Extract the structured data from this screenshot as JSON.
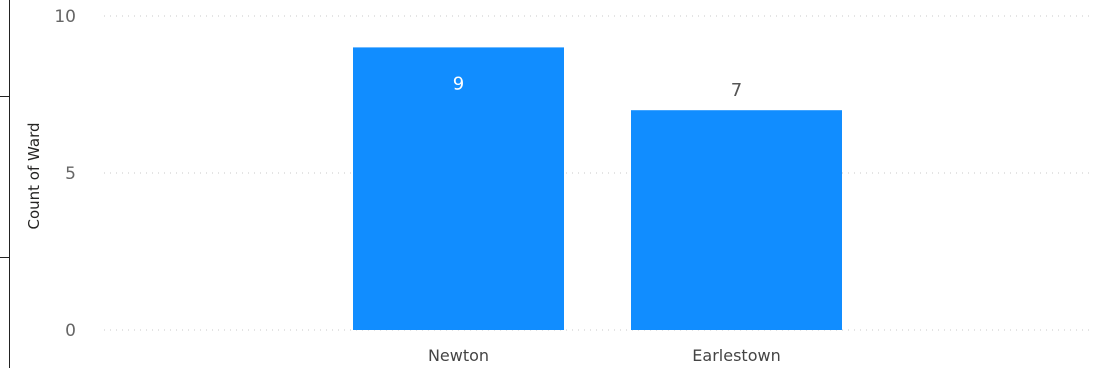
{
  "chart_data": {
    "type": "bar",
    "categories": [
      "Newton",
      "Earlestown"
    ],
    "values": [
      9,
      7
    ],
    "data_labels": [
      "9",
      "7"
    ],
    "xlabel": "",
    "ylabel": "Count of Ward",
    "ylim": [
      0,
      10
    ],
    "yticks": [
      0,
      5,
      10
    ],
    "ytick_labels": [
      "0",
      "5",
      "10"
    ],
    "grid": true,
    "grid_style": "dotted",
    "bar_color": "#118DFF",
    "label_inside_color": "#FFFFFF",
    "label_outside_color": "#555555"
  }
}
